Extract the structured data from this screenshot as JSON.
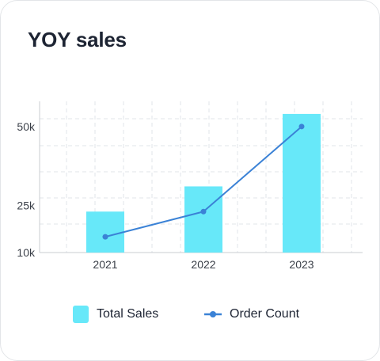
{
  "card": {
    "title": "YOY sales"
  },
  "colors": {
    "bar": "#67e8f9",
    "line": "#3b82d6",
    "grid": "#e2e4e8",
    "axis": "#c9ccd2",
    "tick_text": "#3a3f48"
  },
  "chart_data": {
    "type": "bar",
    "categories": [
      "2021",
      "2022",
      "2023"
    ],
    "series": [
      {
        "name": "Total Sales",
        "type": "bar",
        "values": [
          23000,
          31000,
          54000
        ]
      },
      {
        "name": "Order Count",
        "type": "line",
        "values": [
          15000,
          23000,
          50000
        ]
      }
    ],
    "y_ticks": [
      "50k",
      "25k",
      "10k"
    ],
    "y_tick_values": [
      50000,
      25000,
      10000
    ],
    "ylim": [
      10000,
      60000
    ],
    "grid": true,
    "legend_position": "bottom"
  }
}
